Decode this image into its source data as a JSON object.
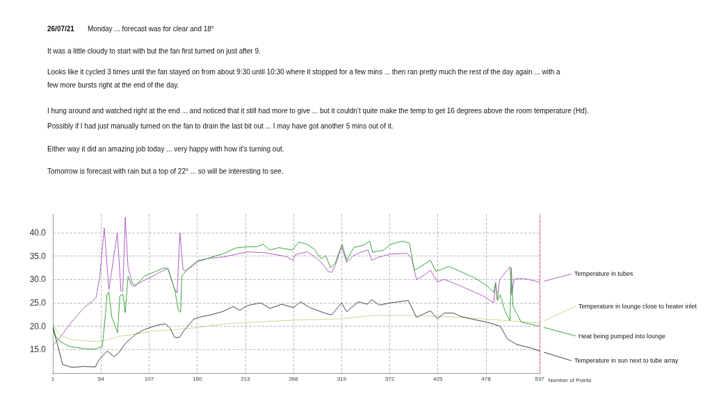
{
  "chart_data": {
    "type": "line",
    "title": "26/07/21",
    "subtitle": "Monday  ...  forecast was for clear and 18°",
    "annotations": [
      "It was a little cloudy to start with but the fan first turned on just after 9.",
      "Looks like it cycled 3 times until the fan stayed on from about 9:30 until 10:30 where it stopped for a few mins  ...  then ran pretty much the rest of the day again  ...  with a few more bursts right at the end of the day.",
      "I hung around and watched right at the end  ...  and noticed that it still had more to give  ...  but it couldn’t quite make the temp to get 16 degrees above the room temperature (Hd).",
      "Possibly if I had just manually turned on the fan to drain the last bit out  ...  I may have got another 5 mins out of it.",
      "Either way it did an amazing job today  ...  very happy with how it’s turning out.",
      "Tomorrow is forecast with rain but a top of 22°  ...  so will be interesting to see."
    ],
    "xlabel": "Number of Points",
    "xlim": [
      1,
      537
    ],
    "xticks": [
      1,
      54,
      107,
      160,
      213,
      266,
      319,
      372,
      425,
      478,
      537
    ],
    "ylim": [
      10,
      44
    ],
    "yticks": [
      {
        "value": 15,
        "label": "15.0"
      },
      {
        "value": 20,
        "label": "20.0"
      },
      {
        "value": 25,
        "label": "25.0"
      },
      {
        "value": 30,
        "label": "30.0"
      },
      {
        "value": 35,
        "label": "35.0"
      },
      {
        "value": 40,
        "label": "40.0"
      }
    ],
    "grid": true,
    "legend": "right",
    "marker": "none",
    "line_style": "solid",
    "ref_lines": [
      {
        "axis": "x",
        "value": 537,
        "color": "#e05080",
        "line_style": "dashed"
      }
    ],
    "series": [
      {
        "name": "Temperature in tubes",
        "color": "#b05cc0",
        "x": [
          1,
          9,
          22,
          35,
          45,
          49,
          53,
          57.6,
          62.7,
          72,
          76,
          78,
          80.7,
          83.8,
          88.5,
          91.6,
          127.6,
          135,
          137.8,
          141,
          144.3,
          147,
          161,
          176.4,
          189,
          215,
          235,
          258,
          265.4,
          268,
          281,
          288.8,
          296.5,
          304.2,
          308,
          311.8,
          319,
          324.6,
          332.3,
          340,
          348,
          352.3,
          360.5,
          373,
          391,
          396.3,
          401.4,
          409,
          416.8,
          424.5,
          432,
          450,
          475.7,
          486.5,
          488.5,
          490.6,
          493,
          496.2,
          504.4,
          506.4,
          509,
          519.2,
          529.5,
          537
        ],
        "values": [
          15.9,
          17.6,
          21,
          23.9,
          25.4,
          26.3,
          31.2,
          41,
          27.8,
          39.9,
          27.5,
          27.5,
          43.3,
          32.6,
          29.2,
          28.8,
          32.4,
          28,
          27.1,
          40,
          32.1,
          31.8,
          34.1,
          34.6,
          34.8,
          35.9,
          35.7,
          34.9,
          34.1,
          35.3,
          35.9,
          34.9,
          33.7,
          31.7,
          31.5,
          32.9,
          37,
          33.7,
          35.1,
          35.8,
          36.3,
          34.1,
          34.8,
          35.4,
          35.6,
          34.4,
          30,
          30.8,
          32,
          29.5,
          30,
          28.6,
          26.4,
          25,
          29.4,
          25.7,
          30,
          30.8,
          32.7,
          26.7,
          30.1,
          30.2,
          29.8,
          29.4
        ]
      },
      {
        "name": "Temperature in lounge close to heater inlet",
        "color": "#c8d88a",
        "x": [
          1,
          9,
          22,
          35,
          53,
          60.7,
          73.5,
          91.6,
          112,
          138,
          163.6,
          189,
          235.6,
          266,
          319,
          353,
          399,
          450,
          501.5,
          537
        ],
        "values": [
          20.3,
          18.1,
          17.1,
          16.9,
          16.7,
          17.1,
          17.8,
          18.3,
          19,
          19.3,
          19.8,
          20.5,
          21,
          21.3,
          21.6,
          22.3,
          22.3,
          21.9,
          21.2,
          20.7
        ]
      },
      {
        "name": "Heat being pumped into lounge",
        "color": "#3aa33a",
        "x": [
          1,
          4,
          9,
          19.5,
          35,
          47.8,
          55.5,
          58.9,
          60.7,
          62.7,
          65.8,
          72.3,
          74.8,
          78.2,
          80.7,
          83.8,
          87.7,
          91.6,
          101.8,
          122.4,
          127.6,
          135.3,
          139.2,
          141.7,
          143,
          148,
          161,
          176.4,
          189,
          202,
          215,
          225,
          232.5,
          240,
          250,
          264.5,
          272,
          281,
          288.8,
          296.5,
          301.6,
          306.7,
          311.8,
          319.5,
          324.6,
          332.3,
          342.5,
          350,
          353,
          365.6,
          373,
          386,
          393.8,
          399,
          404,
          416.8,
          423,
          437.3,
          450,
          465.6,
          478.4,
          486.5,
          488.5,
          490.6,
          493.6,
          498.8,
          504.4,
          505.9,
          507.7,
          516.7,
          537
        ],
        "values": [
          20.3,
          17.9,
          16.7,
          15.7,
          15.2,
          15.1,
          15.7,
          22.5,
          26.8,
          27.3,
          22,
          18.6,
          26.5,
          26.8,
          22.9,
          30.7,
          28.8,
          28.5,
          30.7,
          32.4,
          32.4,
          27.8,
          23.4,
          23,
          30.7,
          31.9,
          33.8,
          34.8,
          35.5,
          36.7,
          37,
          37,
          37.5,
          36.3,
          36.8,
          36.3,
          38,
          37.5,
          36.5,
          34.4,
          35.1,
          32.5,
          33.4,
          37.5,
          34.1,
          36.8,
          37.3,
          38.2,
          35.8,
          36.3,
          37.5,
          38.2,
          37.7,
          32,
          32.5,
          34.1,
          31.7,
          32.8,
          31.7,
          30.3,
          28.8,
          27.2,
          29.2,
          25.5,
          26.7,
          23.3,
          21.2,
          32.5,
          24.3,
          20.9,
          20
        ]
      },
      {
        "name": "Temperature in sun next to tube array",
        "color": "#444444",
        "x": [
          1,
          5.4,
          11.8,
          22,
          35,
          47.8,
          51.7,
          60.7,
          68.4,
          73.5,
          81.3,
          91.6,
          101.8,
          117.3,
          125,
          130,
          135.3,
          140.4,
          145.6,
          155.9,
          163.6,
          176.4,
          189,
          199.6,
          207,
          215,
          230,
          240,
          253,
          266,
          273.8,
          284,
          300.5,
          308,
          319,
          324.6,
          337.4,
          347.6,
          352.3,
          360.5,
          373,
          392.5,
          401.4,
          409,
          416.8,
          424.5,
          432,
          442.5,
          450,
          465.6,
          478.4,
          493.8,
          501.5,
          511.8,
          527,
          537
        ],
        "values": [
          19.6,
          16.6,
          11.8,
          11.2,
          11.4,
          11.3,
          12.8,
          14.7,
          13.5,
          14.3,
          16.4,
          18.2,
          19.3,
          20.3,
          20.5,
          19.6,
          17.6,
          17.6,
          19.1,
          21.5,
          22,
          22.5,
          23.2,
          24.2,
          23.4,
          24.4,
          25,
          23.8,
          24.7,
          24,
          25.2,
          24,
          22.8,
          22.4,
          25,
          23.1,
          25.2,
          24.7,
          25.7,
          24.5,
          25,
          25.5,
          21.9,
          22.6,
          23.3,
          21.6,
          22.8,
          22.8,
          22.1,
          21.4,
          20.9,
          20,
          17.3,
          16.1,
          15.4,
          14.7
        ]
      }
    ]
  }
}
